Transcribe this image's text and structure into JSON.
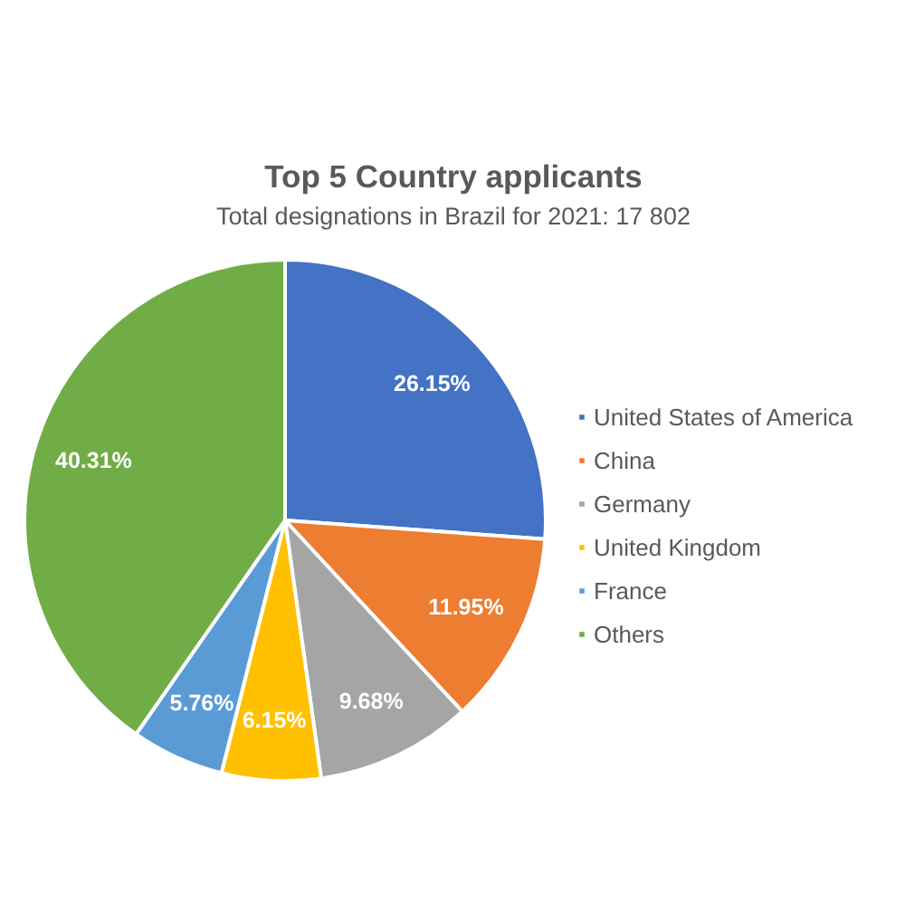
{
  "chart_data": {
    "type": "pie",
    "title": "Top 5 Country applicants",
    "subtitle": "Total designations in Brazil for 2021: 17 802",
    "categories": [
      "United States of America",
      "China",
      "Germany",
      "United Kingdom",
      "France",
      "Others"
    ],
    "values": [
      26.15,
      11.95,
      9.68,
      6.15,
      5.76,
      40.31
    ],
    "colors": [
      "#4472c4",
      "#ed7d31",
      "#a5a5a5",
      "#ffc000",
      "#5b9bd5",
      "#70ad47"
    ],
    "value_labels": [
      "26.15%",
      "11.95%",
      "9.68%",
      "6.15%",
      "5.76%",
      "40.31%"
    ],
    "legend": "right"
  }
}
